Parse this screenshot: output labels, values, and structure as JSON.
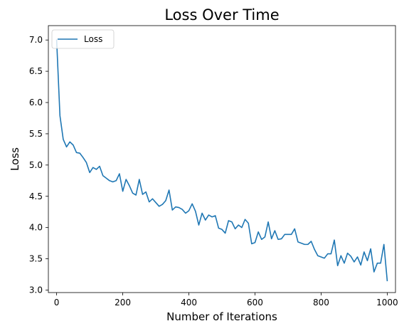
{
  "chart_data": {
    "type": "line",
    "title": "Loss Over Time",
    "xlabel": "Number of Iterations",
    "ylabel": "Loss",
    "xlim": [
      -25,
      1025
    ],
    "ylim": [
      2.96,
      7.23
    ],
    "xticks": [
      0,
      200,
      400,
      600,
      800,
      1000
    ],
    "yticks": [
      3.0,
      3.5,
      4.0,
      4.5,
      5.0,
      5.5,
      6.0,
      6.5,
      7.0
    ],
    "ytick_labels": [
      "3.0",
      "3.5",
      "4.0",
      "4.5",
      "5.0",
      "5.5",
      "6.0",
      "6.5",
      "7.0"
    ],
    "grid": false,
    "legend": {
      "position": "top-left",
      "entries": [
        "Loss"
      ]
    },
    "series": [
      {
        "name": "Loss",
        "color": "#1f77b4",
        "x": [
          0,
          10,
          20,
          30,
          40,
          50,
          60,
          70,
          80,
          90,
          100,
          110,
          120,
          130,
          140,
          150,
          160,
          170,
          180,
          190,
          200,
          210,
          220,
          230,
          240,
          250,
          260,
          270,
          280,
          290,
          300,
          310,
          320,
          330,
          340,
          350,
          360,
          370,
          380,
          390,
          400,
          410,
          420,
          430,
          440,
          450,
          460,
          470,
          480,
          490,
          500,
          510,
          520,
          530,
          540,
          550,
          560,
          570,
          580,
          590,
          600,
          610,
          620,
          630,
          640,
          650,
          660,
          670,
          680,
          690,
          700,
          710,
          720,
          730,
          740,
          750,
          760,
          770,
          780,
          790,
          800,
          810,
          820,
          830,
          840,
          850,
          860,
          870,
          880,
          890,
          900,
          910,
          920,
          930,
          940,
          950,
          960,
          970,
          980,
          990,
          1000
        ],
        "y": [
          7.0,
          5.79,
          5.41,
          5.29,
          5.37,
          5.32,
          5.2,
          5.19,
          5.12,
          5.04,
          4.88,
          4.96,
          4.93,
          4.98,
          4.83,
          4.79,
          4.75,
          4.73,
          4.75,
          4.86,
          4.58,
          4.77,
          4.67,
          4.55,
          4.52,
          4.77,
          4.53,
          4.57,
          4.41,
          4.46,
          4.4,
          4.34,
          4.37,
          4.43,
          4.6,
          4.28,
          4.33,
          4.32,
          4.29,
          4.23,
          4.27,
          4.38,
          4.26,
          4.04,
          4.23,
          4.12,
          4.2,
          4.17,
          4.19,
          3.99,
          3.97,
          3.91,
          4.11,
          4.09,
          3.98,
          4.04,
          4.0,
          4.13,
          4.07,
          3.74,
          3.76,
          3.93,
          3.81,
          3.85,
          4.09,
          3.82,
          3.95,
          3.81,
          3.82,
          3.89,
          3.89,
          3.89,
          3.98,
          3.77,
          3.75,
          3.73,
          3.73,
          3.78,
          3.65,
          3.55,
          3.53,
          3.51,
          3.58,
          3.58,
          3.8,
          3.39,
          3.55,
          3.43,
          3.59,
          3.54,
          3.45,
          3.53,
          3.4,
          3.61,
          3.47,
          3.66,
          3.29,
          3.43,
          3.43,
          3.73,
          3.15
        ]
      }
    ]
  }
}
